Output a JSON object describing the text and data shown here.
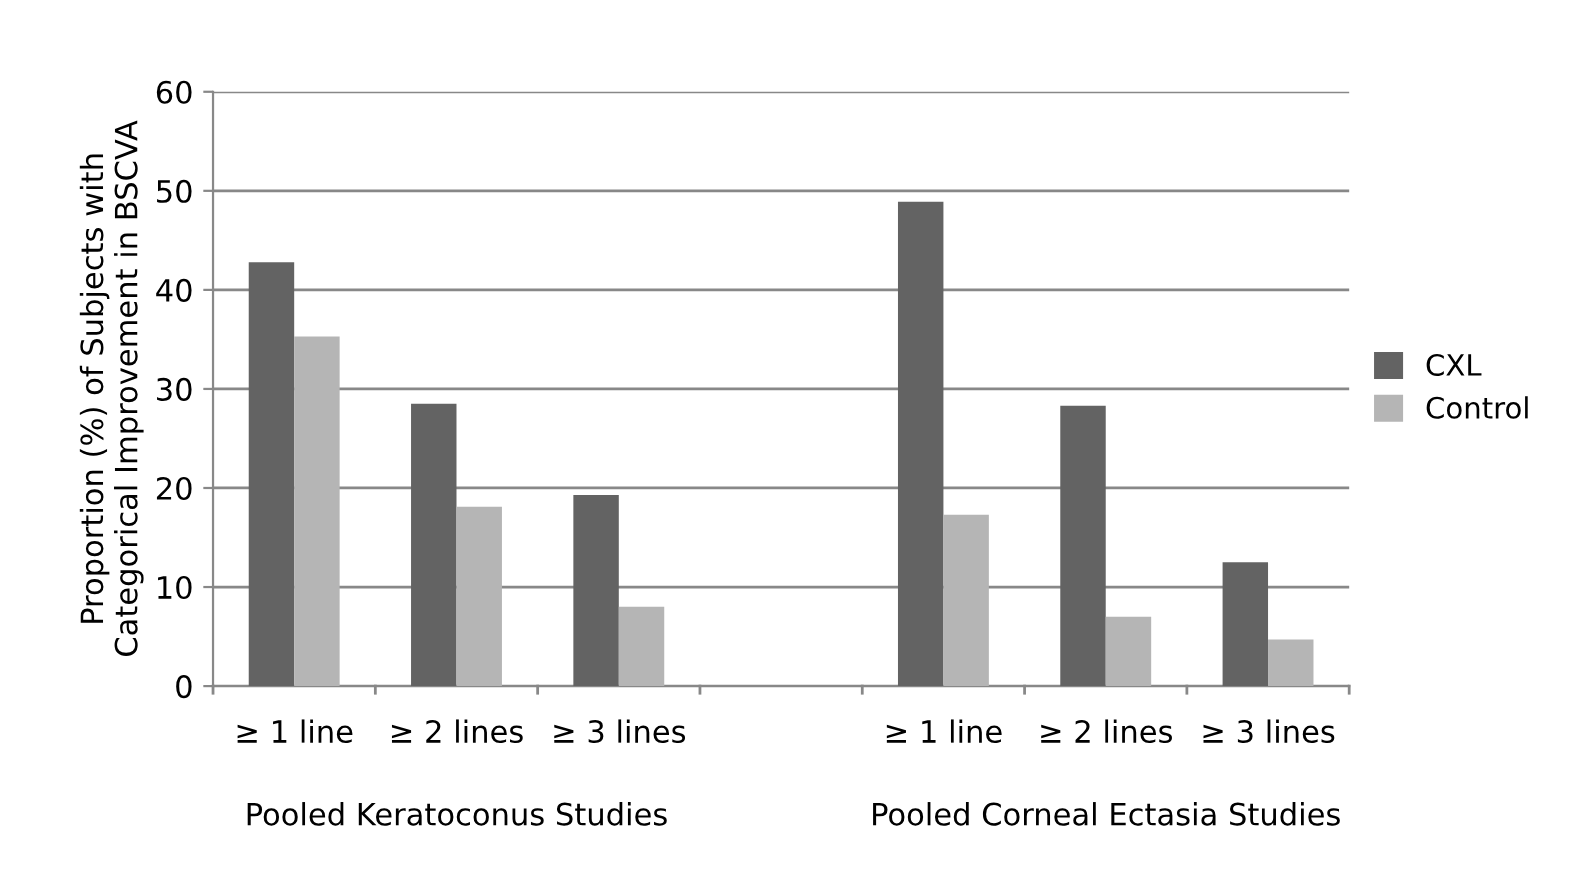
{
  "chart_data": {
    "type": "bar",
    "ylabel": "Proportion (%) of Subjects with\nCategorical Improvement in BSCVA",
    "categories": [
      "≥ 1 line",
      "≥ 2 lines",
      "≥ 3 lines",
      null,
      "≥ 1 line",
      "≥ 2 lines",
      "≥ 3 lines"
    ],
    "series": [
      {
        "name": "CXL",
        "color": "#636363",
        "values": [
          42.8,
          28.5,
          19.3,
          null,
          48.9,
          28.3,
          12.5
        ]
      },
      {
        "name": "Control",
        "color": "#b5b5b5",
        "values": [
          35.3,
          18.1,
          8.0,
          null,
          17.3,
          7.0,
          4.7
        ]
      }
    ],
    "ylim": [
      0,
      60
    ],
    "yticks": [
      0,
      10,
      20,
      30,
      40,
      50,
      60
    ],
    "grid": "y",
    "legend": "right",
    "annotations": [
      "Pooled Keratoconus Studies",
      "Pooled Corneal Ectasia Studies"
    ]
  }
}
